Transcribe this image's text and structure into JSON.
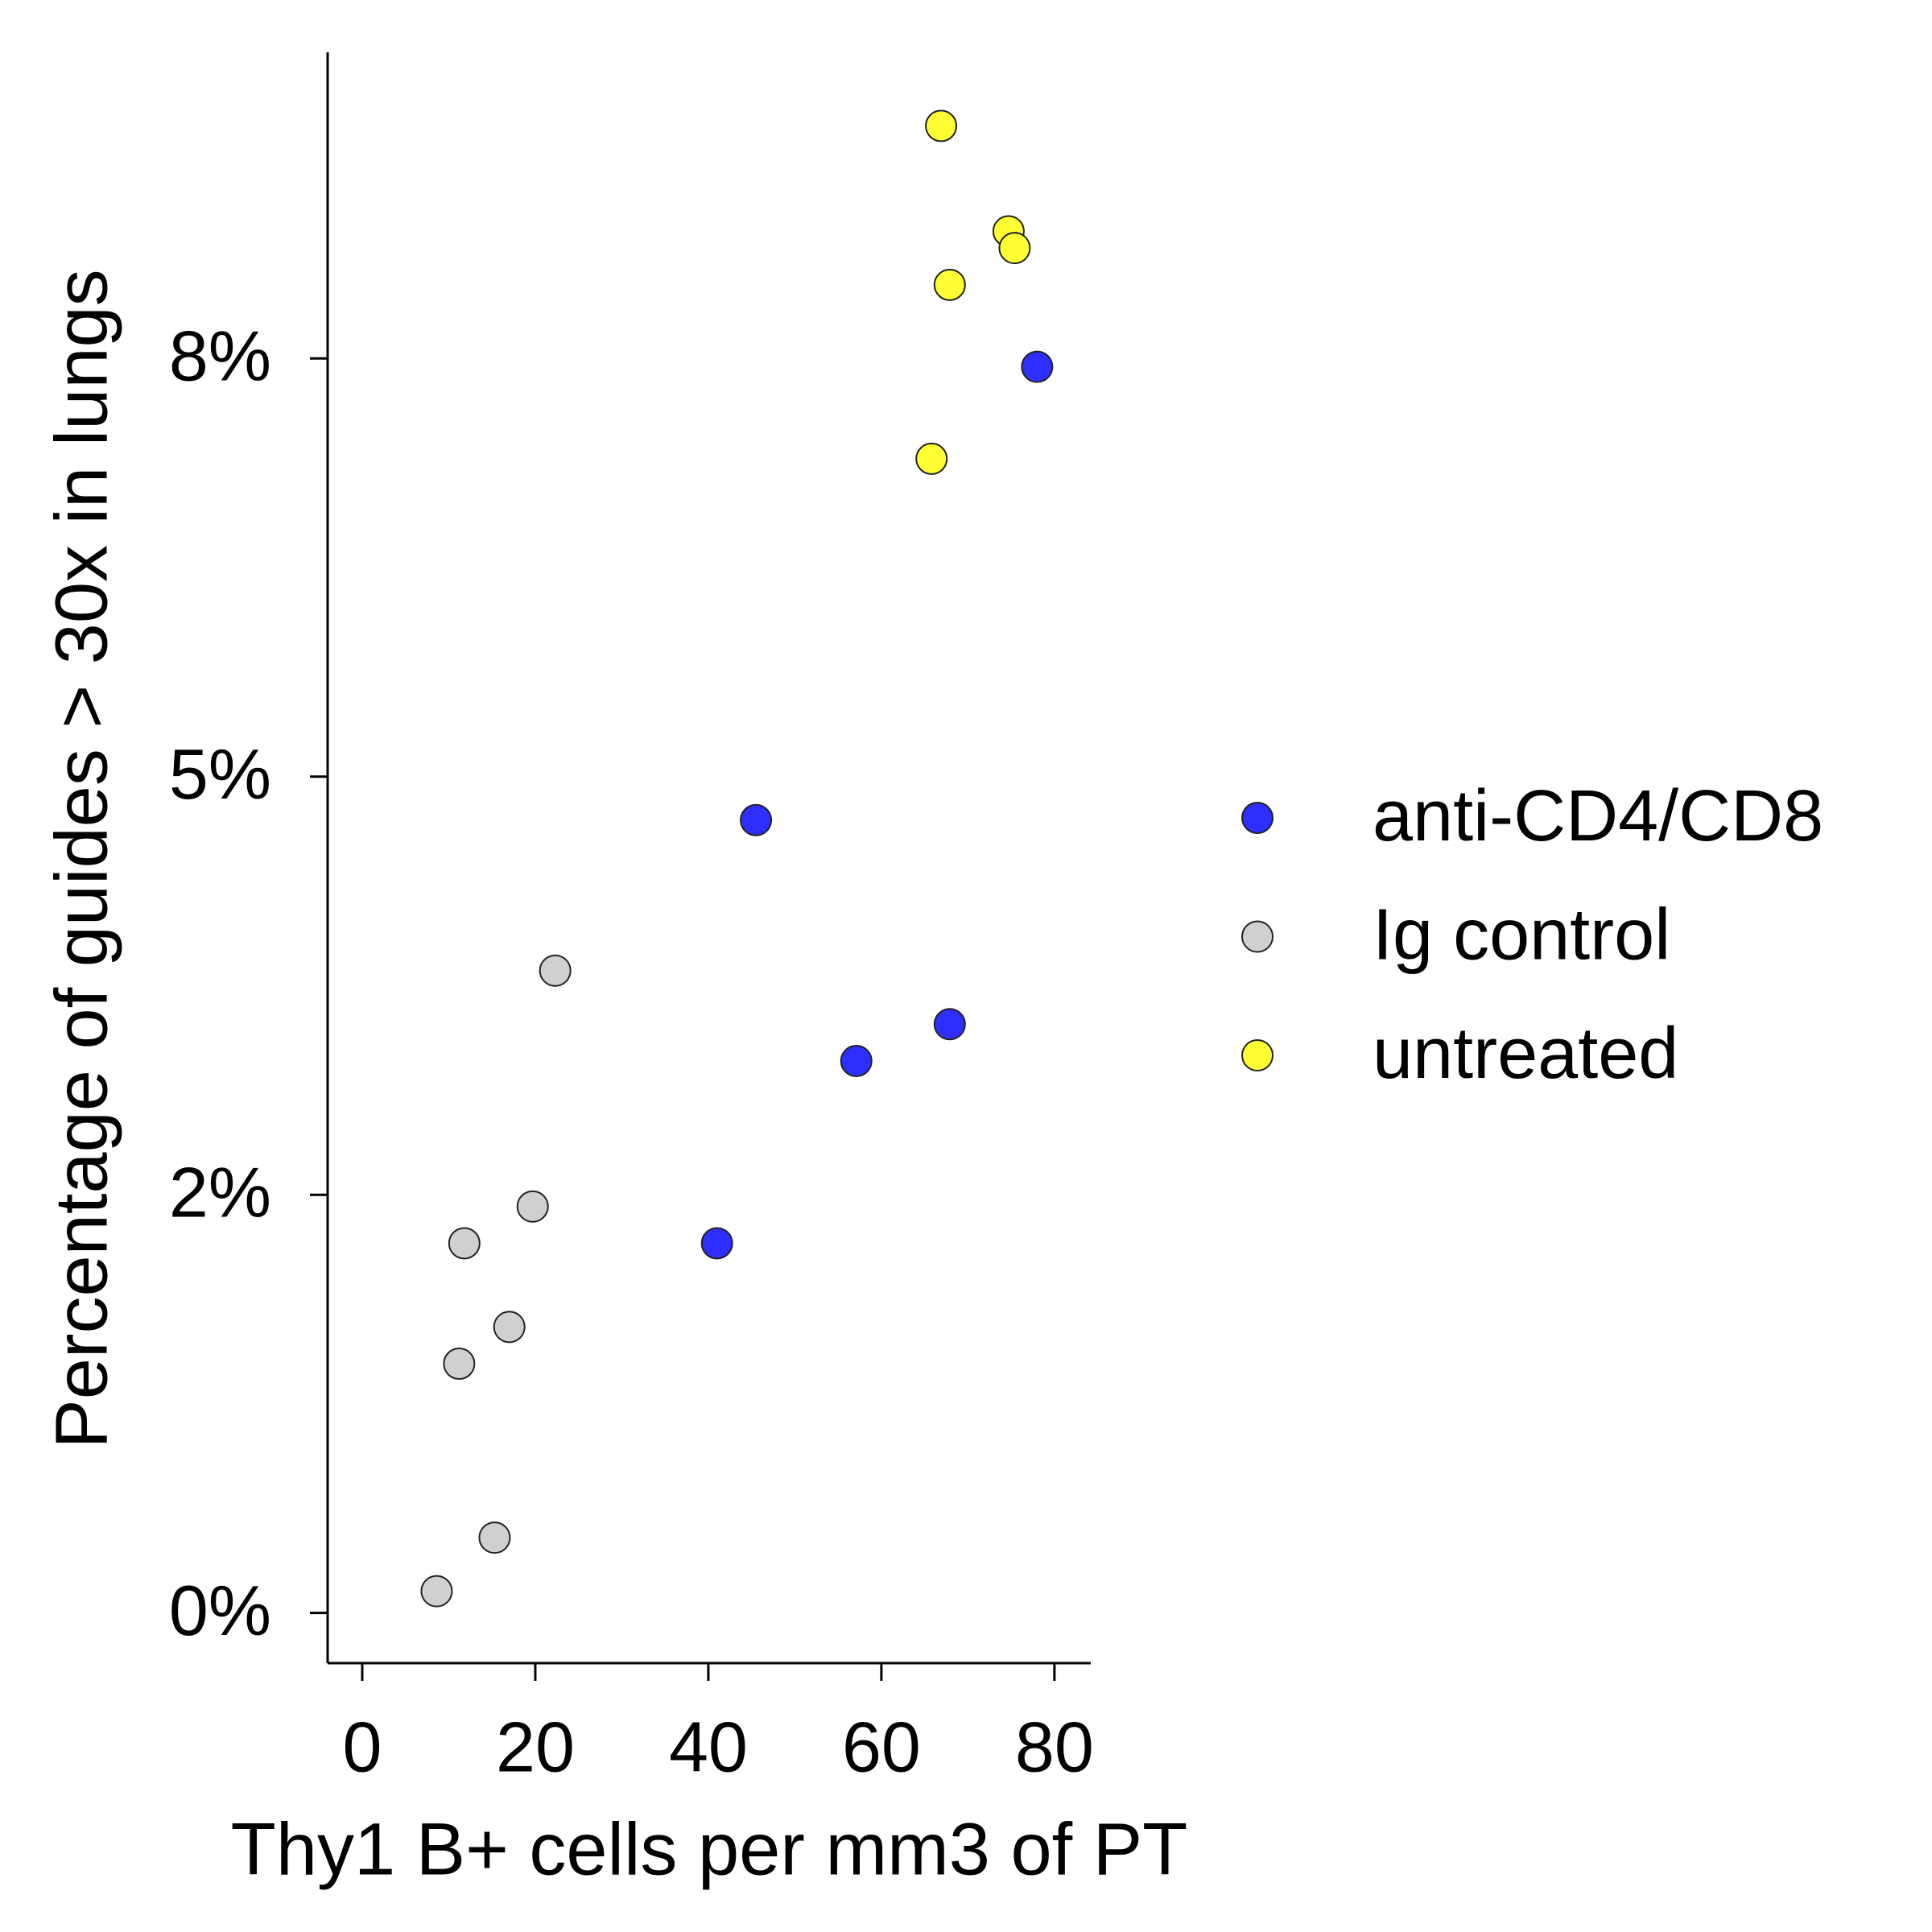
{
  "chart_data": {
    "type": "scatter",
    "x_label": "Thy1 B+ cells per mm3 of PT",
    "y_label": "Percentage of guides > 30x in lungs",
    "xlim": [
      -4,
      84.2
    ],
    "ylim": [
      -0.3,
      9.33
    ],
    "xticks": [
      0,
      20,
      40,
      60,
      80
    ],
    "yticks": [
      {
        "value": 0,
        "label": "0%"
      },
      {
        "value": 2.5,
        "label": "2%"
      },
      {
        "value": 5,
        "label": "5%"
      },
      {
        "value": 7.5,
        "label": "8%"
      }
    ],
    "series": [
      {
        "name": "anti-CD4/CD8",
        "color": "#2e2eff",
        "x": [
          78.0,
          45.5,
          67.9,
          57.1,
          41.0
        ],
        "values": [
          7.45,
          4.74,
          3.52,
          3.3,
          2.21
        ]
      },
      {
        "name": "Ig control",
        "color": "#d0d0d0",
        "x": [
          22.3,
          19.7,
          11.8,
          17.0,
          11.2,
          15.3,
          8.6
        ],
        "values": [
          3.84,
          2.43,
          2.21,
          1.71,
          1.49,
          0.45,
          0.13
        ]
      },
      {
        "name": "untreated",
        "color": "#ffff33",
        "x": [
          66.9,
          74.7,
          75.4,
          67.9,
          65.8
        ],
        "values": [
          8.89,
          8.26,
          8.16,
          7.94,
          6.9
        ]
      }
    ]
  }
}
